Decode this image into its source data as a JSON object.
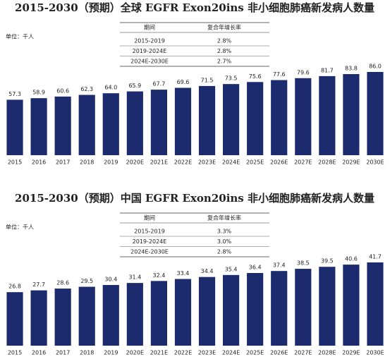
{
  "chart_data": [
    {
      "type": "bar",
      "title": "2015-2030（预期）全球 EGFR Exon20ins 非小细胞肺癌新发病人数量",
      "unit_label": "单位：千人",
      "categories": [
        "2015",
        "2016",
        "2017",
        "2018",
        "2019",
        "2020E",
        "2021E",
        "2022E",
        "2023E",
        "2024E",
        "2025E",
        "2026E",
        "2027E",
        "2028E",
        "2029E",
        "2030E"
      ],
      "values": [
        57.3,
        58.9,
        60.6,
        62.3,
        64.0,
        65.9,
        67.7,
        69.6,
        71.5,
        73.5,
        75.6,
        77.6,
        79.6,
        81.7,
        83.8,
        86.0
      ],
      "value_labels": [
        "57.3",
        "58.9",
        "60.6",
        "62.3",
        "64.0",
        "65.9",
        "67.7",
        "69.6",
        "71.5",
        "73.5",
        "75.6",
        "77.6",
        "79.6",
        "81.7",
        "83.8",
        "86.0"
      ],
      "color": "#1c2a6e",
      "cagr_table": {
        "header": [
          "期间",
          "复合年增长率"
        ],
        "rows": [
          [
            "2015-2019",
            "2.8%"
          ],
          [
            "2019-2024E",
            "2.8%"
          ],
          [
            "2024E-2030E",
            "2.7%"
          ]
        ]
      }
    },
    {
      "type": "bar",
      "title": "2015-2030（预期）中国 EGFR Exon20ins 非小细胞肺癌新发病人数量",
      "unit_label": "单位：千人",
      "categories": [
        "2015",
        "2016",
        "2017",
        "2018",
        "2019",
        "2020E",
        "2021E",
        "2022E",
        "2023E",
        "2024E",
        "2025E",
        "2026E",
        "2027E",
        "2028E",
        "2029E",
        "2030E"
      ],
      "values": [
        26.8,
        27.7,
        28.6,
        29.5,
        30.4,
        31.4,
        32.4,
        33.4,
        34.4,
        35.4,
        36.4,
        37.4,
        38.5,
        39.5,
        40.6,
        41.7
      ],
      "color": "#1c2a6e",
      "cagr_table": {
        "header": [
          "期间",
          "复合年增长率"
        ],
        "rows": [
          [
            "2015-2019",
            "3.3%"
          ],
          [
            "2019-2024E",
            "3.0%"
          ],
          [
            "2024E-2030E",
            "2.8%"
          ]
        ]
      }
    }
  ]
}
